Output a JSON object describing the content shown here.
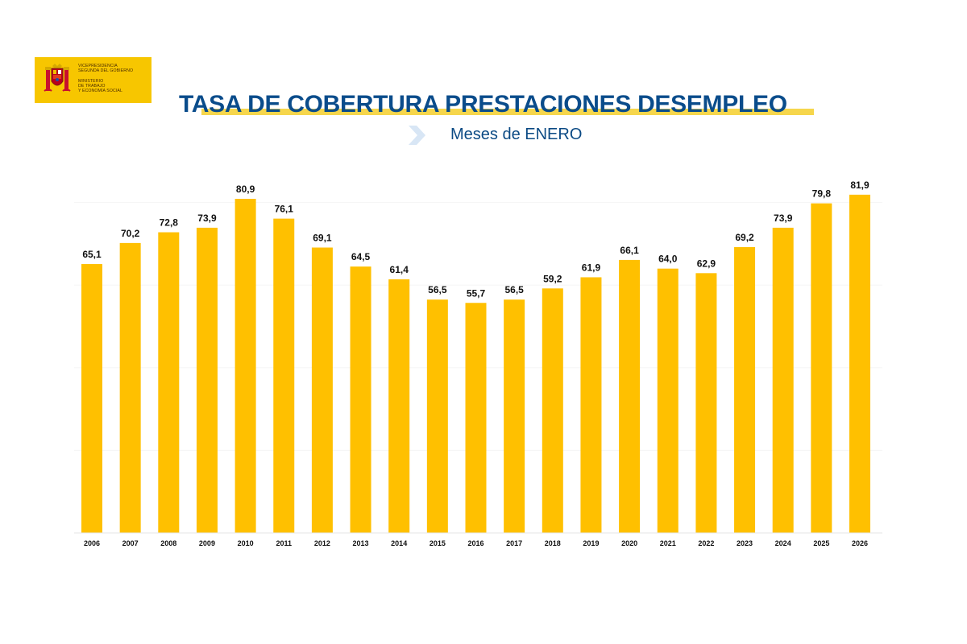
{
  "logo": {
    "line1": "VICEPRESIDENCIA",
    "line2": "SEGUNDA DEL GOBIERNO",
    "line3": "MINISTERIO",
    "line4": "DE TRABAJO",
    "line5": "Y ECONOMÍA SOCIAL",
    "background_color": "#f7c600"
  },
  "page": {
    "accent_color": "#0a4c8b",
    "highlight_color": "#f6d64c",
    "arrow_icon": "chevron-right-icon"
  },
  "chart_data": {
    "type": "bar",
    "title": "TASA DE COBERTURA PRESTACIONES DESEMPLEO",
    "subtitle": "Meses de ENERO",
    "xlabel": "",
    "ylabel": "",
    "ylim": [
      0,
      84
    ],
    "grid": true,
    "legend": "none",
    "bar_color": "#ffc000",
    "categories": [
      "2006",
      "2007",
      "2008",
      "2009",
      "2010",
      "2011",
      "2012",
      "2013",
      "2014",
      "2015",
      "2016",
      "2017",
      "2018",
      "2019",
      "2020",
      "2021",
      "2022",
      "2023",
      "2024",
      "2025",
      "2026"
    ],
    "values": [
      65.1,
      70.2,
      72.8,
      73.9,
      80.9,
      76.1,
      69.1,
      64.5,
      61.4,
      56.5,
      55.7,
      56.5,
      59.2,
      61.9,
      66.1,
      64.0,
      62.9,
      69.2,
      73.9,
      79.8,
      81.9
    ],
    "value_labels": [
      "65,1",
      "70,2",
      "72,8",
      "73,9",
      "80,9",
      "76,1",
      "69,1",
      "64,5",
      "61,4",
      "56,5",
      "55,7",
      "56,5",
      "59,2",
      "61,9",
      "66,1",
      "64,0",
      "62,9",
      "69,2",
      "73,9",
      "79,8",
      "81,9"
    ]
  }
}
